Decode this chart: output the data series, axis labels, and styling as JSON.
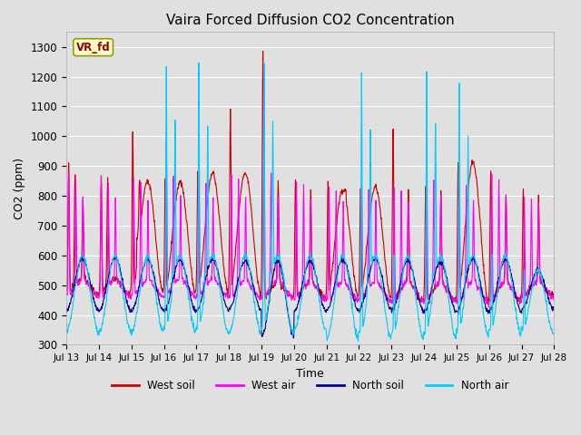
{
  "title": "Vaira Forced Diffusion CO2 Concentration",
  "xlabel": "Time",
  "ylabel": "CO2 (ppm)",
  "label_tag": "VR_fd",
  "ylim": [
    300,
    1350
  ],
  "yticks": [
    300,
    400,
    500,
    600,
    700,
    800,
    900,
    1000,
    1100,
    1200,
    1300
  ],
  "xtick_labels": [
    "Jul 13",
    "Jul 14",
    "Jul 15",
    "Jul 16",
    "Jul 17",
    "Jul 18",
    "Jul 19",
    "Jul 20",
    "Jul 21",
    "Jul 22",
    "Jul 23",
    "Jul 24",
    "Jul 25",
    "Jul 26",
    "Jul 27",
    "Jul 28"
  ],
  "colors": {
    "west_soil": "#cc0000",
    "west_air": "#ff00ff",
    "north_soil": "#000099",
    "north_air": "#00ccff"
  },
  "legend": [
    "West soil",
    "West air",
    "North soil",
    "North air"
  ],
  "background_color": "#e0e0e0",
  "axes_background": "#e0e0e0",
  "grid_color": "#ffffff",
  "tag_bg": "#ffffcc",
  "tag_text_color": "#990000",
  "tag_border_color": "#999900",
  "figsize": [
    6.4,
    4.8
  ],
  "dpi": 100
}
